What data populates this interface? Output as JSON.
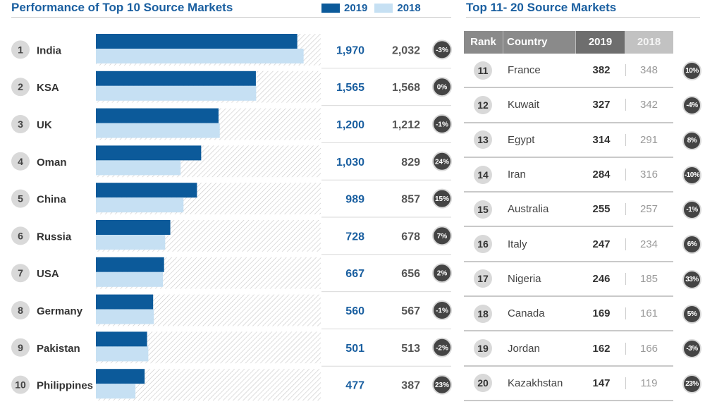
{
  "left": {
    "title": "Performance of Top 10 Source Markets",
    "legend": [
      {
        "label": "2019",
        "color": "#0c5a9a"
      },
      {
        "label": "2018",
        "color": "#c6e0f3"
      }
    ]
  },
  "right": {
    "title": "Top 11- 20 Source Markets",
    "headers": {
      "rank": "Rank",
      "country": "Country",
      "y2019": "2019",
      "y2018": "2018"
    },
    "rows": [
      {
        "rank": "11",
        "country": "France",
        "v2019": "382",
        "v2018": "348",
        "change": "10%"
      },
      {
        "rank": "12",
        "country": "Kuwait",
        "v2019": "327",
        "v2018": "342",
        "change": "-4%"
      },
      {
        "rank": "13",
        "country": "Egypt",
        "v2019": "314",
        "v2018": "291",
        "change": "8%"
      },
      {
        "rank": "14",
        "country": "Iran",
        "v2019": "284",
        "v2018": "316",
        "change": "-10%"
      },
      {
        "rank": "15",
        "country": "Australia",
        "v2019": "255",
        "v2018": "257",
        "change": "-1%"
      },
      {
        "rank": "16",
        "country": "Italy",
        "v2019": "247",
        "v2018": "234",
        "change": "6%"
      },
      {
        "rank": "17",
        "country": "Nigeria",
        "v2019": "246",
        "v2018": "185",
        "change": "33%"
      },
      {
        "rank": "18",
        "country": "Canada",
        "v2019": "169",
        "v2018": "161",
        "change": "5%"
      },
      {
        "rank": "19",
        "country": "Jordan",
        "v2019": "162",
        "v2018": "166",
        "change": "-3%"
      },
      {
        "rank": "20",
        "country": "Kazakhstan",
        "v2019": "147",
        "v2018": "119",
        "change": "23%"
      }
    ]
  },
  "chart_data": {
    "type": "bar",
    "title": "Performance of Top 10 Source Markets",
    "orientation": "horizontal",
    "xlim": [
      0,
      2200
    ],
    "categories": [
      "India",
      "KSA",
      "UK",
      "Oman",
      "China",
      "Russia",
      "USA",
      "Germany",
      "Pakistan",
      "Philippines"
    ],
    "ranks": [
      "1",
      "2",
      "3",
      "4",
      "5",
      "6",
      "7",
      "8",
      "9",
      "10"
    ],
    "series": [
      {
        "name": "2019",
        "color": "#0c5a9a",
        "values": [
          1970,
          1565,
          1200,
          1030,
          989,
          728,
          667,
          560,
          501,
          477
        ],
        "labels": [
          "1,970",
          "1,565",
          "1,200",
          "1,030",
          "989",
          "728",
          "667",
          "560",
          "501",
          "477"
        ]
      },
      {
        "name": "2018",
        "color": "#c6e0f3",
        "values": [
          2032,
          1568,
          1212,
          829,
          857,
          678,
          656,
          567,
          513,
          387
        ],
        "labels": [
          "2,032",
          "1,568",
          "1,212",
          "829",
          "857",
          "678",
          "656",
          "567",
          "513",
          "387"
        ]
      }
    ],
    "change": [
      "-3%",
      "0%",
      "-1%",
      "24%",
      "15%",
      "7%",
      "2%",
      "-1%",
      "-2%",
      "23%"
    ]
  }
}
